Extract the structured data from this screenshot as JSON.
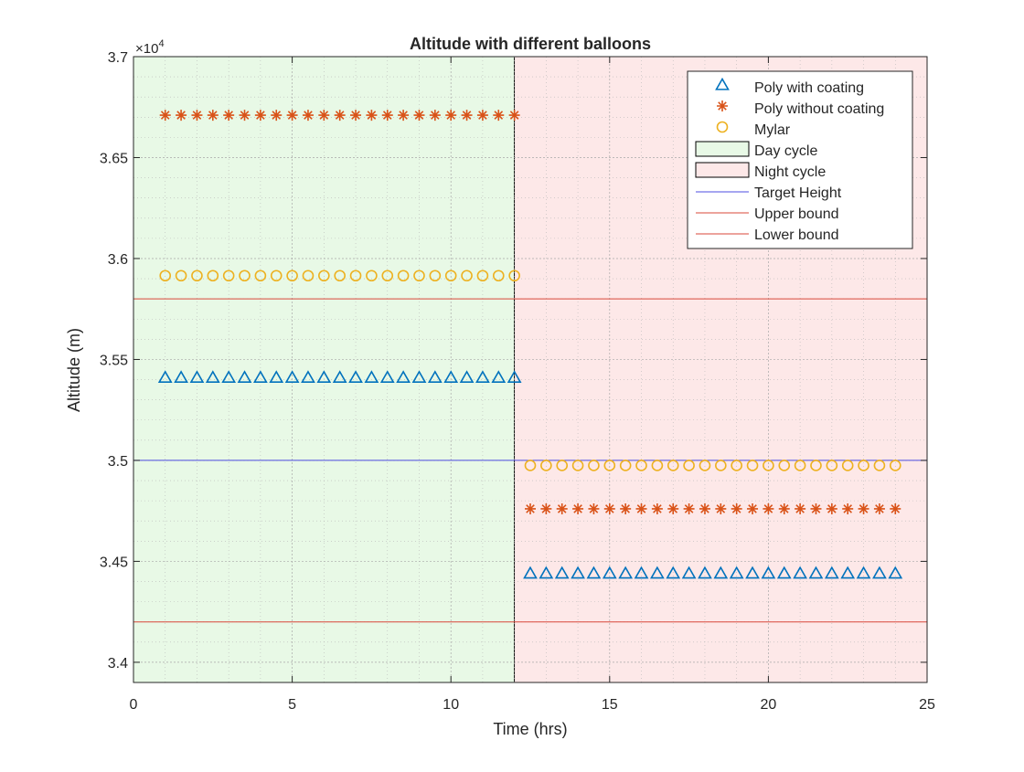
{
  "chart_data": {
    "type": "scatter",
    "title": "Altitude with different balloons",
    "xlabel": "Time (hrs)",
    "ylabel": "Altitude (m)",
    "y_exponent_label": "×10",
    "y_exponent_power": "4",
    "xlim": [
      0,
      25
    ],
    "ylim": [
      33900,
      37000
    ],
    "xticks": [
      0,
      5,
      10,
      15,
      20,
      25
    ],
    "xtick_labels": [
      "0",
      "5",
      "10",
      "15",
      "20",
      "25"
    ],
    "yticks": [
      34000,
      34500,
      35000,
      35500,
      36000,
      36500,
      37000
    ],
    "ytick_labels": [
      "3.4",
      "3.45",
      "3.5",
      "3.55",
      "3.6",
      "3.65",
      "3.7"
    ],
    "grid": true,
    "minor_grid": true,
    "legend_position": "top-right",
    "regions": [
      {
        "name": "Day cycle",
        "x": [
          0,
          12
        ],
        "fill": "#e8f9e6",
        "edge": "#000000"
      },
      {
        "name": "Night cycle",
        "x": [
          12,
          25
        ],
        "fill": "#fde8e8",
        "edge": "#000000"
      }
    ],
    "hlines": [
      {
        "name": "Target Height",
        "y": 35000,
        "color": "#4d4de0"
      },
      {
        "name": "Upper bound",
        "y": 35800,
        "color": "#d9473a"
      },
      {
        "name": "Lower bound",
        "y": 34200,
        "color": "#d9473a"
      }
    ],
    "series": [
      {
        "name": "Poly with coating",
        "marker": "triangle",
        "color": "#0072bd",
        "segments": [
          {
            "x_start": 1,
            "x_end": 12,
            "step": 0.5,
            "y": 35410
          },
          {
            "x_start": 12.5,
            "x_end": 24,
            "step": 0.5,
            "y": 34440
          }
        ]
      },
      {
        "name": "Poly without coating",
        "marker": "asterisk",
        "color": "#d95319",
        "segments": [
          {
            "x_start": 1,
            "x_end": 12,
            "step": 0.5,
            "y": 36710
          },
          {
            "x_start": 12.5,
            "x_end": 24,
            "step": 0.5,
            "y": 34760
          }
        ]
      },
      {
        "name": "Mylar",
        "marker": "circle",
        "color": "#edb120",
        "segments": [
          {
            "x_start": 1,
            "x_end": 12,
            "step": 0.5,
            "y": 35915
          },
          {
            "x_start": 12.5,
            "x_end": 24,
            "step": 0.5,
            "y": 34975
          }
        ]
      }
    ],
    "legend": [
      {
        "label": "Poly with coating",
        "kind": "marker",
        "ref": "Poly with coating"
      },
      {
        "label": "Poly without coating",
        "kind": "marker",
        "ref": "Poly without coating"
      },
      {
        "label": "Mylar",
        "kind": "marker",
        "ref": "Mylar"
      },
      {
        "label": "Day cycle",
        "kind": "patch",
        "ref": "Day cycle"
      },
      {
        "label": "Night cycle",
        "kind": "patch",
        "ref": "Night cycle"
      },
      {
        "label": "Target Height",
        "kind": "line",
        "ref": "Target Height"
      },
      {
        "label": "Upper bound",
        "kind": "line",
        "ref": "Upper bound"
      },
      {
        "label": "Lower bound",
        "kind": "line",
        "ref": "Lower bound"
      }
    ]
  }
}
